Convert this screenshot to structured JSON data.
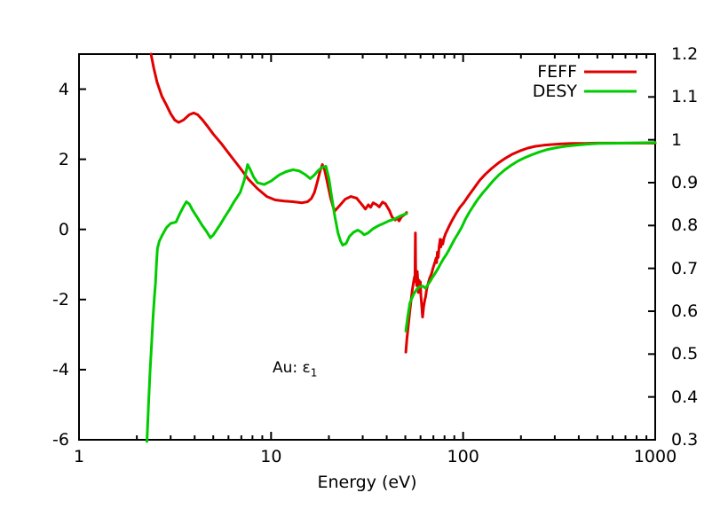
{
  "chart_data": {
    "type": "line",
    "xlabel": "Energy (eV)",
    "x_scale": "log",
    "x_range": [
      1,
      1000
    ],
    "x_ticks": [
      {
        "v": 1,
        "label": "1"
      },
      {
        "v": 10,
        "label": "10"
      },
      {
        "v": 100,
        "label": "100"
      },
      {
        "v": 1000,
        "label": "1000"
      }
    ],
    "y_left_range": [
      -6,
      5
    ],
    "y_left_ticks": [
      {
        "v": 4,
        "label": "4"
      },
      {
        "v": 2,
        "label": "2"
      },
      {
        "v": 0,
        "label": "0"
      },
      {
        "v": -2,
        "label": "-2"
      },
      {
        "v": -4,
        "label": "-4"
      },
      {
        "v": -6,
        "label": "-6"
      }
    ],
    "y_right_range": [
      0.3,
      1.2
    ],
    "y_right_ticks": [
      {
        "v": 1.2,
        "label": "1.2"
      },
      {
        "v": 1.1,
        "label": "1.1"
      },
      {
        "v": 1.0,
        "label": "1"
      },
      {
        "v": 0.9,
        "label": "0.9"
      },
      {
        "v": 0.8,
        "label": "0.8"
      },
      {
        "v": 0.7,
        "label": "0.7"
      },
      {
        "v": 0.6,
        "label": "0.6"
      },
      {
        "v": 0.5,
        "label": "0.5"
      },
      {
        "v": 0.4,
        "label": "0.4"
      },
      {
        "v": 0.3,
        "label": "0.3"
      }
    ],
    "grid": false,
    "legend_position": "top-right-inside",
    "annotation": {
      "prefix": "Au: ε",
      "sub": "1"
    },
    "frame_color": "#000000",
    "series": [
      {
        "name": "FEFF",
        "color": "#e10000",
        "y_axis": "left",
        "segments": [
          [
            [
              2.37,
              5.0
            ],
            [
              2.45,
              4.6
            ],
            [
              2.55,
              4.2
            ],
            [
              2.7,
              3.8
            ],
            [
              2.85,
              3.55
            ],
            [
              3.0,
              3.3
            ],
            [
              3.15,
              3.12
            ],
            [
              3.3,
              3.05
            ],
            [
              3.5,
              3.12
            ],
            [
              3.75,
              3.27
            ],
            [
              3.95,
              3.32
            ],
            [
              4.15,
              3.27
            ],
            [
              4.4,
              3.12
            ],
            [
              4.7,
              2.92
            ],
            [
              5.0,
              2.72
            ],
            [
              5.5,
              2.45
            ],
            [
              6.2,
              2.08
            ],
            [
              6.9,
              1.75
            ],
            [
              7.6,
              1.44
            ],
            [
              8.5,
              1.16
            ],
            [
              9.5,
              0.94
            ],
            [
              10.5,
              0.84
            ],
            [
              11.7,
              0.81
            ],
            [
              13.0,
              0.79
            ],
            [
              14.5,
              0.76
            ],
            [
              15.5,
              0.79
            ],
            [
              16.2,
              0.88
            ],
            [
              16.8,
              1.05
            ],
            [
              17.4,
              1.35
            ],
            [
              18.0,
              1.67
            ],
            [
              18.5,
              1.85
            ],
            [
              19.0,
              1.7
            ],
            [
              19.6,
              1.35
            ],
            [
              20.4,
              0.91
            ],
            [
              21.0,
              0.66
            ],
            [
              21.5,
              0.53
            ],
            [
              22.6,
              0.66
            ],
            [
              24.3,
              0.86
            ],
            [
              26.0,
              0.94
            ],
            [
              27.9,
              0.89
            ],
            [
              29.5,
              0.73
            ],
            [
              31.0,
              0.58
            ],
            [
              32.1,
              0.7
            ],
            [
              33.0,
              0.63
            ],
            [
              34.0,
              0.76
            ],
            [
              35.5,
              0.7
            ],
            [
              36.6,
              0.64
            ],
            [
              38.1,
              0.78
            ],
            [
              39.4,
              0.73
            ],
            [
              41.4,
              0.53
            ],
            [
              42.7,
              0.35
            ],
            [
              44.3,
              0.27
            ],
            [
              45.6,
              0.32
            ],
            [
              46.4,
              0.24
            ],
            [
              47.8,
              0.36
            ],
            [
              50.0,
              0.44
            ],
            [
              50.8,
              0.48
            ]
          ],
          [
            [
              50.3,
              -3.5
            ],
            [
              51.0,
              -3.1
            ],
            [
              51.8,
              -2.75
            ],
            [
              52.6,
              -2.4
            ],
            [
              53.5,
              -2.05
            ],
            [
              54.3,
              -1.75
            ],
            [
              55.2,
              -1.5
            ],
            [
              55.8,
              -1.35
            ],
            [
              56.1,
              -1.45
            ],
            [
              56.3,
              -0.55
            ],
            [
              56.4,
              -0.1
            ],
            [
              56.55,
              -0.8
            ],
            [
              56.7,
              -1.5
            ],
            [
              57.0,
              -1.25
            ],
            [
              57.3,
              -1.6
            ],
            [
              57.7,
              -1.2
            ],
            [
              58.1,
              -1.5
            ],
            [
              58.5,
              -1.8
            ],
            [
              58.9,
              -1.45
            ],
            [
              59.4,
              -1.75
            ],
            [
              59.9,
              -1.5
            ],
            [
              60.3,
              -1.9
            ],
            [
              60.9,
              -2.2
            ],
            [
              61.5,
              -2.5
            ],
            [
              62.3,
              -2.2
            ],
            [
              63.2,
              -2.0
            ],
            [
              63.8,
              -1.92
            ],
            [
              64.6,
              -1.7
            ],
            [
              65.8,
              -1.54
            ],
            [
              66.8,
              -1.4
            ],
            [
              67.8,
              -1.32
            ],
            [
              68.6,
              -1.24
            ],
            [
              69.7,
              -1.1
            ],
            [
              70.8,
              -0.99
            ],
            [
              71.8,
              -0.88
            ],
            [
              72.3,
              -0.82
            ],
            [
              72.8,
              -0.95
            ],
            [
              73.5,
              -0.65
            ],
            [
              74.2,
              -0.8
            ],
            [
              75.0,
              -0.5
            ],
            [
              75.9,
              -0.28
            ],
            [
              76.6,
              -0.5
            ],
            [
              77.4,
              -0.3
            ],
            [
              78.3,
              -0.42
            ],
            [
              79.5,
              -0.25
            ],
            [
              81,
              -0.12
            ],
            [
              83,
              0.0
            ],
            [
              85,
              0.12
            ],
            [
              88,
              0.28
            ],
            [
              92,
              0.46
            ],
            [
              96,
              0.62
            ],
            [
              101,
              0.77
            ],
            [
              107,
              0.97
            ],
            [
              114,
              1.18
            ],
            [
              122,
              1.4
            ],
            [
              131,
              1.58
            ],
            [
              141,
              1.74
            ],
            [
              153,
              1.9
            ],
            [
              166,
              2.03
            ],
            [
              181,
              2.15
            ],
            [
              198,
              2.24
            ],
            [
              217,
              2.32
            ],
            [
              238,
              2.37
            ],
            [
              262,
              2.4
            ],
            [
              290,
              2.42
            ],
            [
              325,
              2.44
            ],
            [
              370,
              2.45
            ],
            [
              430,
              2.45
            ],
            [
              500,
              2.46
            ],
            [
              590,
              2.46
            ],
            [
              700,
              2.46
            ],
            [
              840,
              2.46
            ],
            [
              1000,
              2.46
            ]
          ]
        ]
      },
      {
        "name": "DESY",
        "color": "#00cc00",
        "y_axis": "left",
        "segments": [
          [
            [
              2.24,
              -6.3
            ],
            [
              2.26,
              -6.0
            ],
            [
              2.3,
              -5.0
            ],
            [
              2.34,
              -4.1
            ],
            [
              2.39,
              -3.2
            ],
            [
              2.43,
              -2.5
            ],
            [
              2.47,
              -1.9
            ],
            [
              2.5,
              -1.55
            ],
            [
              2.53,
              -1.0
            ],
            [
              2.56,
              -0.55
            ],
            [
              2.62,
              -0.33
            ],
            [
              2.72,
              -0.15
            ],
            [
              2.85,
              0.05
            ],
            [
              3.0,
              0.17
            ],
            [
              3.2,
              0.21
            ],
            [
              3.35,
              0.45
            ],
            [
              3.5,
              0.65
            ],
            [
              3.62,
              0.79
            ],
            [
              3.76,
              0.72
            ],
            [
              3.9,
              0.55
            ],
            [
              4.12,
              0.35
            ],
            [
              4.35,
              0.14
            ],
            [
              4.6,
              -0.05
            ],
            [
              4.83,
              -0.24
            ],
            [
              5.0,
              -0.16
            ],
            [
              5.2,
              -0.02
            ],
            [
              5.45,
              0.15
            ],
            [
              5.75,
              0.36
            ],
            [
              6.1,
              0.58
            ],
            [
              6.4,
              0.78
            ],
            [
              6.9,
              1.05
            ],
            [
              7.25,
              1.4
            ],
            [
              7.55,
              1.85
            ],
            [
              7.8,
              1.7
            ],
            [
              8.1,
              1.5
            ],
            [
              8.5,
              1.33
            ],
            [
              9.2,
              1.28
            ],
            [
              10.0,
              1.38
            ],
            [
              11.0,
              1.55
            ],
            [
              12.0,
              1.65
            ],
            [
              13.0,
              1.7
            ],
            [
              14.0,
              1.67
            ],
            [
              15.0,
              1.57
            ],
            [
              16.0,
              1.45
            ],
            [
              16.8,
              1.55
            ],
            [
              17.6,
              1.68
            ],
            [
              18.6,
              1.78
            ],
            [
              19.3,
              1.8
            ],
            [
              20.0,
              1.45
            ],
            [
              20.7,
              0.91
            ],
            [
              21.5,
              0.35
            ],
            [
              22.3,
              -0.1
            ],
            [
              23.0,
              -0.33
            ],
            [
              23.6,
              -0.45
            ],
            [
              24.6,
              -0.4
            ],
            [
              25.6,
              -0.2
            ],
            [
              26.9,
              -0.08
            ],
            [
              28.3,
              -0.02
            ],
            [
              29.5,
              -0.08
            ],
            [
              30.5,
              -0.15
            ],
            [
              32.0,
              -0.1
            ],
            [
              34.0,
              0.02
            ],
            [
              36.0,
              0.1
            ],
            [
              38.5,
              0.17
            ],
            [
              41.0,
              0.24
            ],
            [
              44.0,
              0.3
            ],
            [
              47.0,
              0.38
            ],
            [
              49.0,
              0.42
            ],
            [
              50.8,
              0.45
            ]
          ],
          [
            [
              50.3,
              -2.9
            ],
            [
              51.6,
              -2.45
            ],
            [
              52.8,
              -2.1
            ],
            [
              55.2,
              -1.85
            ],
            [
              57.5,
              -1.7
            ],
            [
              59.5,
              -1.63
            ],
            [
              61.8,
              -1.62
            ],
            [
              63.8,
              -1.68
            ],
            [
              65.5,
              -1.58
            ],
            [
              67.2,
              -1.49
            ],
            [
              69.0,
              -1.38
            ],
            [
              70.8,
              -1.29
            ],
            [
              72.6,
              -1.19
            ],
            [
              74.5,
              -1.09
            ],
            [
              76.5,
              -0.97
            ],
            [
              78.6,
              -0.86
            ],
            [
              81.9,
              -0.71
            ],
            [
              84.5,
              -0.58
            ],
            [
              87.5,
              -0.42
            ],
            [
              90.5,
              -0.27
            ],
            [
              94.0,
              -0.12
            ],
            [
              98.0,
              0.05
            ],
            [
              103,
              0.3
            ],
            [
              108,
              0.5
            ],
            [
              114,
              0.7
            ],
            [
              120,
              0.88
            ],
            [
              127,
              1.05
            ],
            [
              135,
              1.22
            ],
            [
              144,
              1.4
            ],
            [
              154,
              1.56
            ],
            [
              165,
              1.7
            ],
            [
              178,
              1.83
            ],
            [
              193,
              1.95
            ],
            [
              210,
              2.05
            ],
            [
              228,
              2.13
            ],
            [
              250,
              2.21
            ],
            [
              275,
              2.28
            ],
            [
              305,
              2.33
            ],
            [
              340,
              2.37
            ],
            [
              385,
              2.4
            ],
            [
              440,
              2.43
            ],
            [
              510,
              2.45
            ],
            [
              600,
              2.455
            ],
            [
              700,
              2.46
            ],
            [
              820,
              2.47
            ],
            [
              1000,
              2.48
            ]
          ]
        ]
      }
    ]
  }
}
